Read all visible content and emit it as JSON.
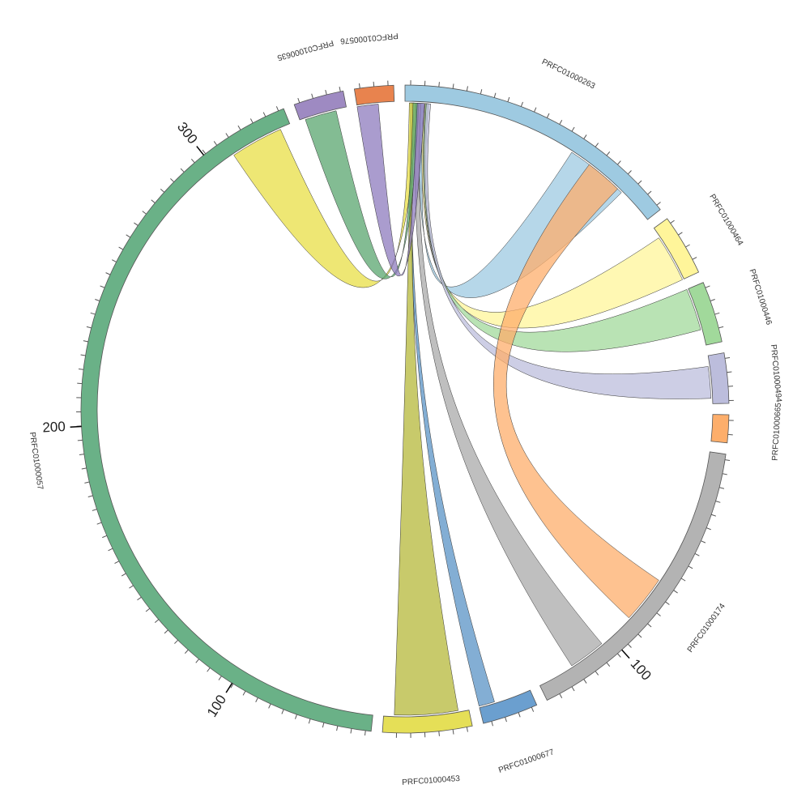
{
  "chart_data": {
    "type": "chord",
    "title": "",
    "segments": [
      {
        "id": "PRFC01000263",
        "label": "PRFC01000263",
        "color": "#9ecae1",
        "start": 0,
        "end": 52
      },
      {
        "id": "PRFC01000464",
        "label": "PRFC01000464",
        "color": "#fff59a",
        "start": 54,
        "end": 65
      },
      {
        "id": "PRFC01000446",
        "label": "PRFC01000446",
        "color": "#a1d99b",
        "start": 67,
        "end": 78
      },
      {
        "id": "PRFC01000494",
        "label": "PRFC01000494",
        "color": "#bcbddc",
        "start": 80,
        "end": 89
      },
      {
        "id": "PRFC01000665",
        "label": "PRFC01000665",
        "color": "#fdae6b",
        "start": 91,
        "end": 96
      },
      {
        "id": "PRFC01000174",
        "label": "PRFC01000174",
        "color": "#b3b3b3",
        "start": 98,
        "end": 154,
        "axis": {
          "start_value": 0,
          "major": [
            100
          ],
          "major_labels": [
            "100"
          ]
        }
      },
      {
        "id": "PRFC01000677",
        "label": "PRFC01000677",
        "color": "#6b9fcf",
        "start": 156,
        "end": 166
      },
      {
        "id": "PRFC01000453",
        "label": "PRFC01000453",
        "color": "#e5df57",
        "start": 168,
        "end": 184
      },
      {
        "id": "PRFC01000057",
        "label": "PRFC01000057",
        "color": "#6ab187",
        "start": 186,
        "end": 338,
        "axis": {
          "start_value": 52,
          "major": [
            100,
            200,
            300
          ],
          "major_labels": [
            "100",
            "200",
            "300"
          ]
        }
      },
      {
        "id": "PRFC01000635",
        "label": "PRFC01000635",
        "color": "#9e8ac2",
        "start": 340,
        "end": 349
      },
      {
        "id": "PRFC01000576",
        "label": "PRFC01000576",
        "color": "#e8834e",
        "start": 351,
        "end": 358
      }
    ],
    "links": [
      {
        "source": [
          "PRFC01000263",
          1.0,
          1.3
        ],
        "target": [
          "PRFC01000677",
          163,
          166
        ],
        "color": "#5a93c6"
      },
      {
        "source": [
          "PRFC01000263",
          1.3,
          1.7
        ],
        "target": [
          "PRFC01000453",
          170,
          182
        ],
        "color": "#b5b83a"
      },
      {
        "source": [
          "PRFC01000263",
          2.0,
          3.0
        ],
        "target": [
          "PRFC01000174",
          140,
          147
        ],
        "color": "#a9a9a9"
      },
      {
        "source": [
          "PRFC01000263",
          3.0,
          3.8
        ],
        "target": [
          "PRFC01000263",
          33,
          45
        ],
        "color": "#9ecae1"
      },
      {
        "source": [
          "PRFC01000263",
          3.5,
          4.0
        ],
        "target": [
          "PRFC01000464",
          56,
          65
        ],
        "color": "#fff59a"
      },
      {
        "source": [
          "PRFC01000263",
          3.8,
          4.4
        ],
        "target": [
          "PRFC01000446",
          67,
          75
        ],
        "color": "#a1d99b"
      },
      {
        "source": [
          "PRFC01000263",
          4.0,
          4.8
        ],
        "target": [
          "PRFC01000494",
          82,
          88
        ],
        "color": "#bcbddc"
      },
      {
        "source": [
          "PRFC01000263",
          37,
          44
        ],
        "target": [
          "PRFC01000174",
          124,
          133
        ],
        "color": "#fdae6b"
      },
      {
        "source": [
          "PRFC01000263",
          0.8,
          2.1
        ],
        "target": [
          "PRFC01000057",
          326,
          336
        ],
        "color": "#e8df45"
      },
      {
        "source": [
          "PRFC01000263",
          1.5,
          2.6
        ],
        "target": [
          "PRFC01000635",
          341,
          347
        ],
        "color": "#5aa56f"
      },
      {
        "source": [
          "PRFC01000263",
          2.3,
          3.7
        ],
        "target": [
          "PRFC01000576",
          351,
          355
        ],
        "color": "#8e7bbd"
      }
    ]
  }
}
